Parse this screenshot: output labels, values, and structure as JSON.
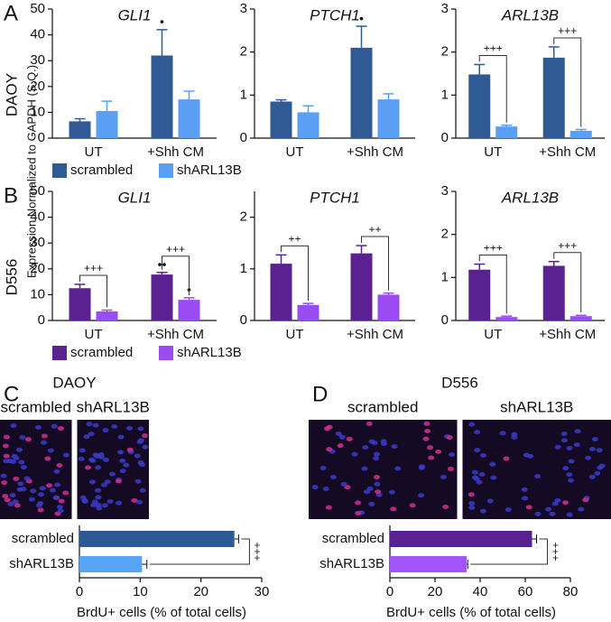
{
  "ylabel": "Expression Normalized to GAPDH (S.Q.)",
  "chart_data": [
    {
      "type": "grouped-bar",
      "label": "A",
      "row_label": "DAOY",
      "categories": [
        "UT",
        "+Shh CM"
      ],
      "series": [
        {
          "name": "scrambled",
          "color": "#2f5a93"
        },
        {
          "name": "shARL13B",
          "color": "#5b9ff5"
        }
      ],
      "subplots": [
        {
          "title": "GLI1",
          "ylim": [
            0,
            50
          ],
          "yticks": [
            0,
            10,
            20,
            30,
            40,
            50
          ],
          "values": [
            [
              6.5,
              32
            ],
            [
              10.5,
              15
            ]
          ],
          "errors": [
            [
              1,
              10
            ],
            [
              3.8,
              3.2
            ]
          ],
          "markers": [
            [
              null,
              "•"
            ],
            [
              null,
              null
            ]
          ],
          "bracket_labels": [
            null,
            null
          ]
        },
        {
          "title": "PTCH1",
          "ylim": [
            0,
            3
          ],
          "yticks": [
            0,
            1,
            2,
            3
          ],
          "values": [
            [
              0.85,
              2.1
            ],
            [
              0.6,
              0.9
            ]
          ],
          "errors": [
            [
              0.04,
              0.5
            ],
            [
              0.15,
              0.13
            ]
          ],
          "markers": [
            [
              null,
              "•"
            ],
            [
              null,
              null
            ]
          ],
          "bracket_labels": [
            null,
            null
          ]
        },
        {
          "title": "ARL13B",
          "ylim": [
            0,
            3
          ],
          "yticks": [
            0,
            1,
            2,
            3
          ],
          "values": [
            [
              1.48,
              1.87
            ],
            [
              0.27,
              0.17
            ]
          ],
          "errors": [
            [
              0.23,
              0.25
            ],
            [
              0.03,
              0.03
            ]
          ],
          "markers": [
            [
              null,
              null
            ],
            [
              null,
              null
            ]
          ],
          "bracket_labels": [
            "+++",
            "+++"
          ]
        }
      ]
    },
    {
      "type": "grouped-bar",
      "label": "B",
      "row_label": "D556",
      "categories": [
        "UT",
        "+Shh CM"
      ],
      "series": [
        {
          "name": "scrambled",
          "color": "#5a2290"
        },
        {
          "name": "shARL13B",
          "color": "#9b4cf0"
        }
      ],
      "subplots": [
        {
          "title": "GLI1",
          "ylim": [
            0,
            50
          ],
          "yticks": [
            0,
            10,
            20,
            30,
            40,
            50
          ],
          "values": [
            [
              12.5,
              17.8
            ],
            [
              3.5,
              8
            ]
          ],
          "errors": [
            [
              1.5,
              0.8
            ],
            [
              0.5,
              0.8
            ]
          ],
          "markers": [
            [
              null,
              "••"
            ],
            [
              null,
              "•"
            ]
          ],
          "bracket_labels": [
            "+++",
            "+++"
          ]
        },
        {
          "title": "PTCH1",
          "ylim": [
            0,
            2.5
          ],
          "yticks": [
            0,
            1,
            2
          ],
          "values": [
            [
              1.1,
              1.3
            ],
            [
              0.3,
              0.5
            ]
          ],
          "errors": [
            [
              0.17,
              0.15
            ],
            [
              0.03,
              0.03
            ]
          ],
          "markers": [
            [
              null,
              null
            ],
            [
              null,
              null
            ]
          ],
          "bracket_labels": [
            "++",
            "++"
          ]
        },
        {
          "title": "ARL13B",
          "ylim": [
            0,
            3
          ],
          "yticks": [
            0,
            1,
            2,
            3
          ],
          "values": [
            [
              1.18,
              1.27
            ],
            [
              0.08,
              0.1
            ]
          ],
          "errors": [
            [
              0.13,
              0.1
            ],
            [
              0.02,
              0.02
            ]
          ],
          "markers": [
            [
              null,
              null
            ],
            [
              null,
              null
            ]
          ],
          "bracket_labels": [
            "+++",
            "+++"
          ]
        }
      ]
    },
    {
      "type": "hbar",
      "label": "C",
      "title": "DAOY",
      "image_labels": [
        "scrambled",
        "shARL13B"
      ],
      "categories": [
        "scrambled",
        "shARL13B"
      ],
      "values": [
        25.5,
        10.3
      ],
      "errors": [
        0.7,
        0.8
      ],
      "colors": [
        "#2d5a92",
        "#57a3f5"
      ],
      "xlim": [
        0,
        30
      ],
      "xticks": [
        0,
        10,
        20,
        30
      ],
      "xlabel": "BrdU+ cells (% of total cells)",
      "significance": "+++"
    },
    {
      "type": "hbar",
      "label": "D",
      "title": "D556",
      "image_labels": [
        "scrambled",
        "shARL13B"
      ],
      "categories": [
        "scrambled",
        "shARL13B"
      ],
      "values": [
        63,
        34
      ],
      "errors": [
        2,
        0.5
      ],
      "colors": [
        "#5a2290",
        "#a155f6"
      ],
      "xlim": [
        0,
        80
      ],
      "xticks": [
        0,
        20,
        40,
        60,
        80
      ],
      "xlabel": "BrdU+ cells (% of total cells)",
      "significance": "+++"
    }
  ]
}
